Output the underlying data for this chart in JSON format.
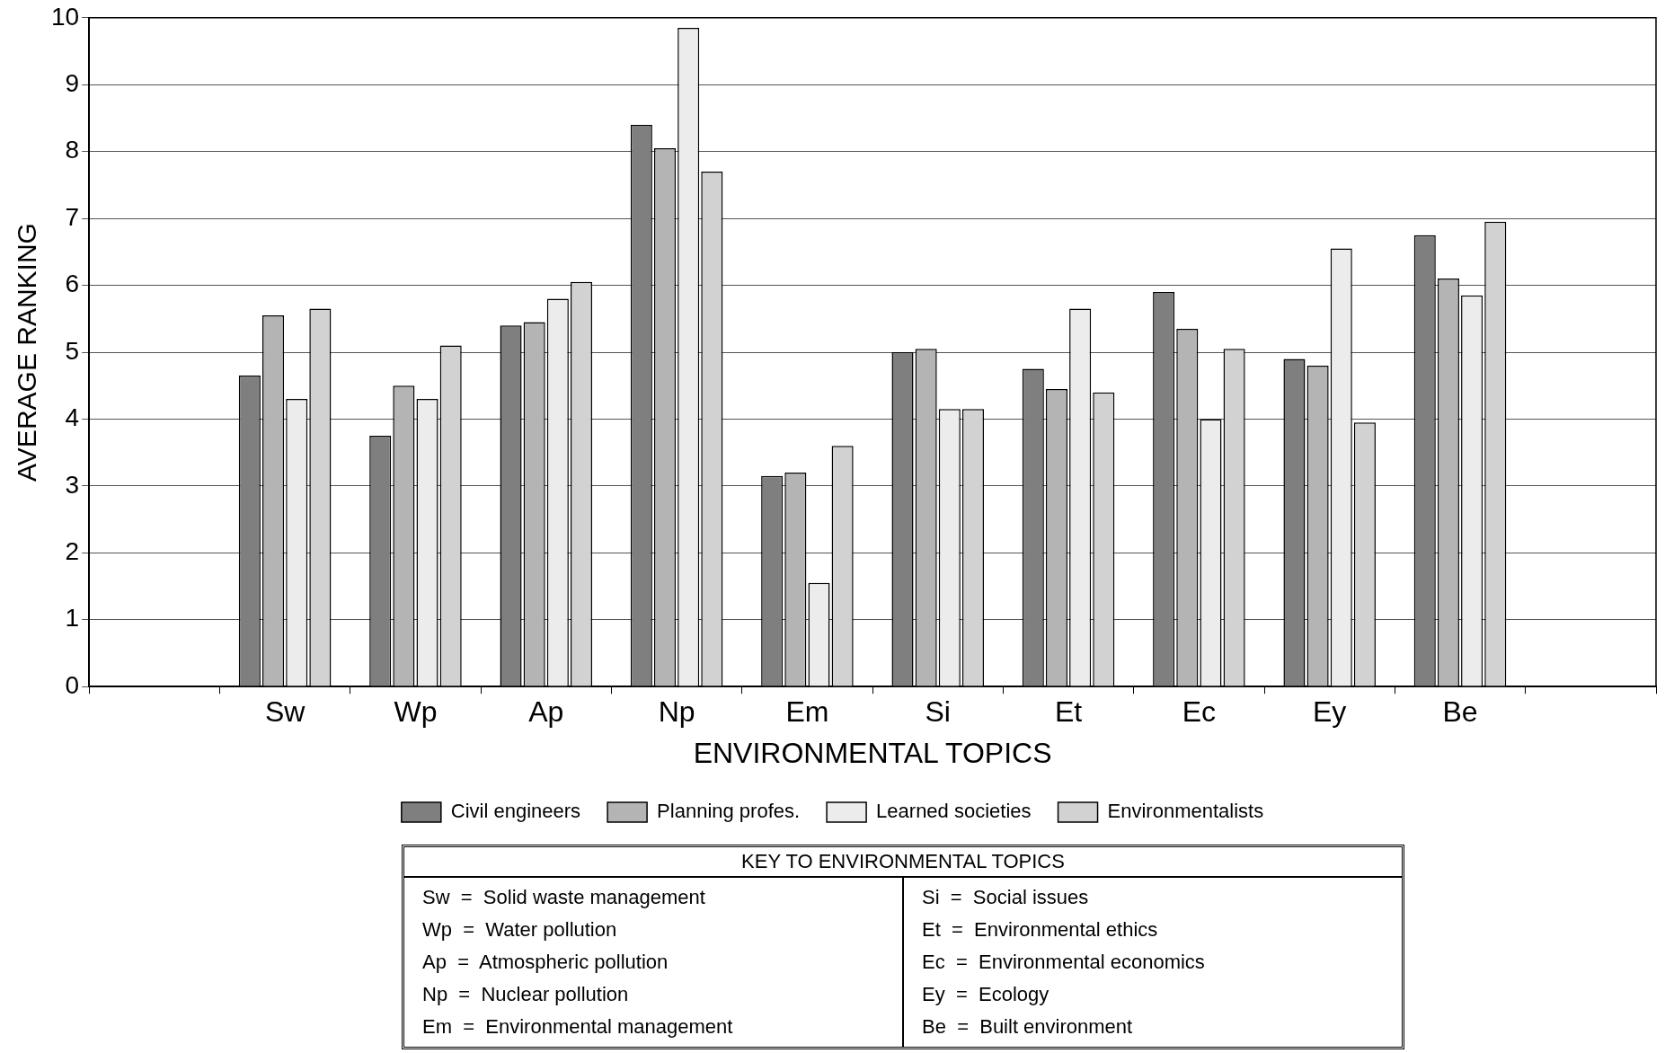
{
  "chart_data": {
    "type": "bar",
    "xlabel": "ENVIRONMENTAL TOPICS",
    "ylabel": "AVERAGE RANKING",
    "categories": [
      null,
      "Sw",
      "Wp",
      "Ap",
      "Np",
      "Em",
      "Si",
      "Et",
      "Ec",
      "Ey",
      "Be",
      null
    ],
    "series": [
      {
        "name": "Civil engineers",
        "color": "#7f7f7f",
        "values": [
          null,
          4.65,
          3.75,
          5.4,
          8.4,
          3.15,
          5.0,
          4.75,
          5.9,
          4.9,
          6.75,
          null
        ]
      },
      {
        "name": "Planning profes.",
        "color": "#b4b4b4",
        "values": [
          null,
          5.55,
          4.5,
          5.45,
          8.05,
          3.2,
          5.05,
          4.45,
          5.35,
          4.8,
          6.1,
          null
        ]
      },
      {
        "name": "Learned societies",
        "color": "#ececec",
        "values": [
          null,
          4.3,
          4.3,
          5.8,
          9.85,
          1.55,
          4.15,
          5.65,
          4.0,
          6.55,
          5.85,
          null
        ]
      },
      {
        "name": "Environmentalists",
        "color": "#d2d2d2",
        "values": [
          null,
          5.65,
          5.1,
          6.05,
          7.7,
          3.6,
          4.15,
          4.4,
          5.05,
          3.95,
          6.95,
          null
        ]
      }
    ],
    "ylim": [
      0,
      10
    ],
    "yticks": [
      0,
      1,
      2,
      3,
      4,
      5,
      6,
      7,
      8,
      9,
      10
    ],
    "grid": "y",
    "legend": "bottom",
    "annotations": [
      "KEY TO ENVIRONMENTAL TOPICS",
      "Sw  =  Solid waste management",
      "Wp  =  Water pollution",
      "Ap  =  Atmospheric pollution",
      "Np  =  Nuclear pollution",
      "Em  =  Environmental management",
      "Si  =  Social issues",
      "Et  =  Environmental ethics",
      "Ec  =  Environmental economics",
      "Ey  =  Ecology",
      "Be  =  Built environment"
    ]
  }
}
